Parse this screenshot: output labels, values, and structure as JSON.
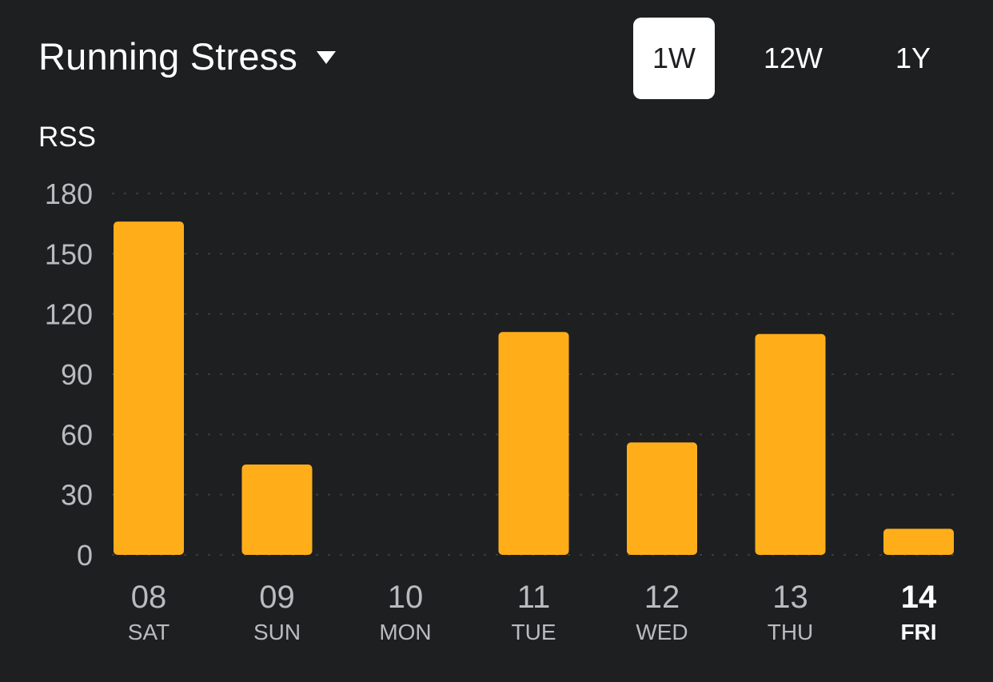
{
  "header": {
    "title": "Running Stress",
    "dropdown_icon": "caret-down-icon",
    "ranges": [
      {
        "label": "1W",
        "active": true
      },
      {
        "label": "12W",
        "active": false
      },
      {
        "label": "1Y",
        "active": false
      }
    ]
  },
  "colors": {
    "background": "#1e1f21",
    "bar": "#ffae1a",
    "text": "#ffffff",
    "muted_text": "#b9bbbe",
    "grid": "#3a3c40"
  },
  "chart_data": {
    "type": "bar",
    "unit_label": "RSS",
    "categories": [
      "08",
      "09",
      "10",
      "11",
      "12",
      "13",
      "14"
    ],
    "category_sublabels": [
      "SAT",
      "SUN",
      "MON",
      "TUE",
      "WED",
      "THU",
      "FRI"
    ],
    "values": [
      166,
      45,
      0,
      111,
      56,
      110,
      13
    ],
    "highlighted_category": "14",
    "ylim": [
      0,
      180
    ],
    "yticks": [
      0,
      30,
      60,
      90,
      120,
      150,
      180
    ],
    "grid": true,
    "grid_style": "dotted"
  }
}
